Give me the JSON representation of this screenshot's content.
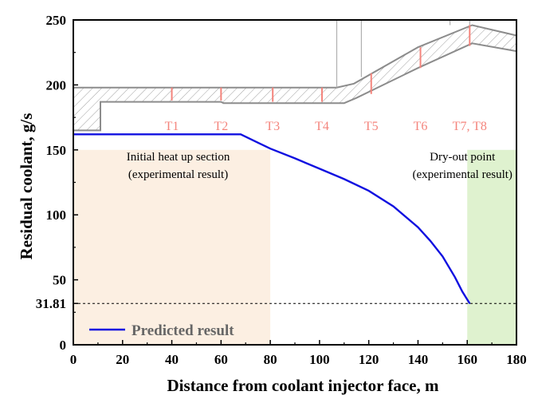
{
  "chart_data": {
    "type": "line",
    "xlabel": "Distance from coolant injector face, m",
    "ylabel": "Residual coolant, g/s",
    "xlim": [
      0,
      180
    ],
    "ylim": [
      0,
      250
    ],
    "x_ticks": [
      "0",
      "20",
      "40",
      "60",
      "80",
      "100",
      "120",
      "140",
      "160",
      "180"
    ],
    "y_ticks": [
      "0",
      "31.81",
      "50",
      "100",
      "150",
      "200",
      "250"
    ],
    "grid": false,
    "legend_position": "bottom-left",
    "series": [
      {
        "name": "Predicted result",
        "color": "#1010e0",
        "x": [
          0,
          10,
          20,
          30,
          40,
          50,
          60,
          68,
          75,
          80,
          90,
          100,
          110,
          120,
          130,
          140,
          145,
          150,
          155,
          158,
          161
        ],
        "y": [
          162,
          162,
          162,
          162,
          162,
          162,
          162,
          162,
          155.5,
          151,
          143.5,
          135.5,
          127.5,
          118.5,
          106.5,
          90.5,
          80,
          68,
          52,
          41,
          31.81
        ]
      }
    ],
    "reference_line": {
      "value": 31.81,
      "label": "31.81",
      "style": "dashed"
    },
    "regions": [
      {
        "x_start": 0,
        "x_end": 80,
        "y_max": 150,
        "color": "#fcefe2",
        "label_lines": [
          "Initial heat up section",
          "(experimental result)"
        ]
      },
      {
        "x_start": 160,
        "x_end": 180,
        "y_max": 150,
        "color": "#dff2cf",
        "label_lines": [
          "Dry-out point",
          "(experimental result)"
        ]
      }
    ],
    "sensors": [
      {
        "label": "T1",
        "x": 40,
        "y_top": 198,
        "y_bottom": 188
      },
      {
        "label": "T2",
        "x": 60,
        "y_top": 198,
        "y_bottom": 188
      },
      {
        "label": "T3",
        "x": 81,
        "y_top": 198,
        "y_bottom": 187
      },
      {
        "label": "T4",
        "x": 101,
        "y_top": 198,
        "y_bottom": 187
      },
      {
        "label": "T5",
        "x": 121,
        "y_top": 209,
        "y_bottom": 193
      },
      {
        "label": "T6",
        "x": 141,
        "y_top": 229,
        "y_bottom": 213
      },
      {
        "label": "T7, T8",
        "x": 161,
        "y_top": 246,
        "y_bottom": 230
      }
    ],
    "sensor_color": "#f4847c",
    "wall": {
      "outer": [
        [
          0,
          198
        ],
        [
          107,
          198
        ],
        [
          114,
          201
        ],
        [
          140,
          229
        ],
        [
          162,
          246
        ],
        [
          180,
          238
        ]
      ],
      "inner": [
        [
          0,
          165
        ],
        [
          11,
          165
        ],
        [
          11,
          187
        ],
        [
          60,
          187
        ],
        [
          61,
          186
        ],
        [
          110,
          186
        ],
        [
          115,
          190
        ],
        [
          140,
          213
        ],
        [
          162,
          232
        ],
        [
          180,
          226
        ]
      ],
      "extra_lines": [
        [
          [
            107,
            250
          ],
          [
            107,
            198
          ]
        ],
        [
          [
            117,
            250
          ],
          [
            117,
            206
          ]
        ],
        [
          [
            153,
            250
          ],
          [
            153,
            246
          ]
        ],
        [
          [
            161,
            250
          ],
          [
            161,
            246
          ]
        ]
      ],
      "color": "#8c8c8c"
    }
  }
}
